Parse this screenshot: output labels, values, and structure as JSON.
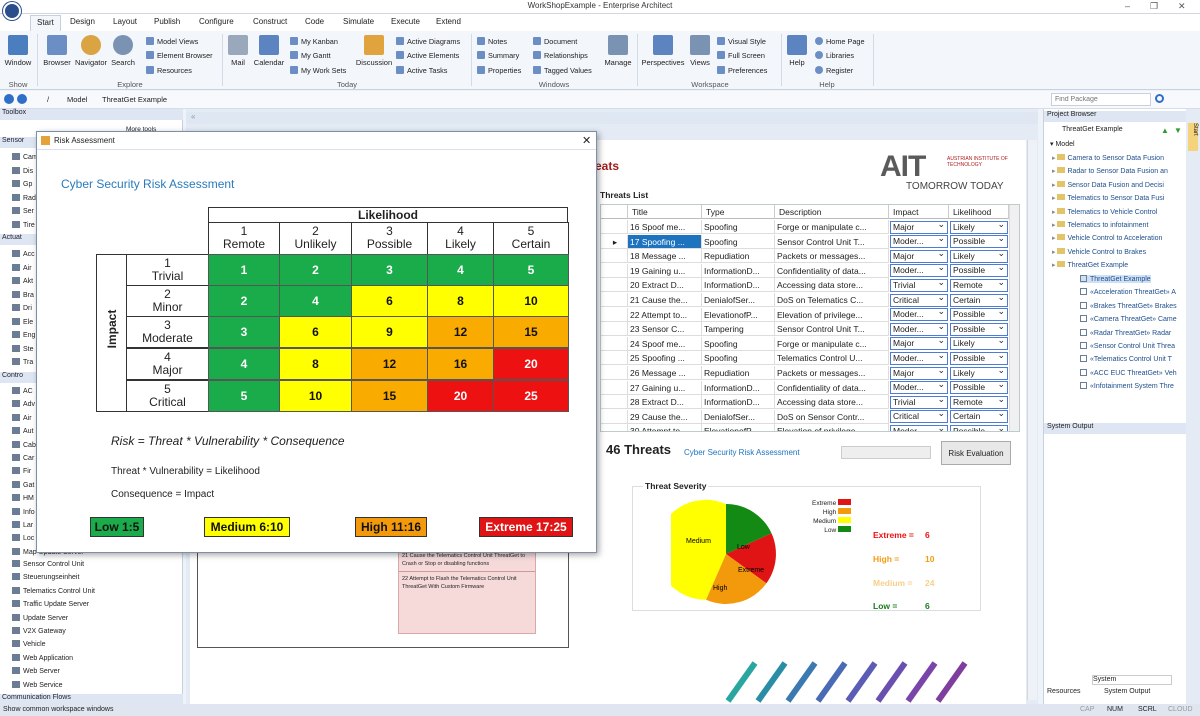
{
  "window": {
    "title": "WorkShopExample - Enterprise Architect"
  },
  "ribbon": {
    "tabs": [
      "Start",
      "Design",
      "Layout",
      "Publish",
      "Configure",
      "Construct",
      "Code",
      "Simulate",
      "Execute",
      "Extend"
    ],
    "window_label": "Window",
    "browser": "Browser",
    "navigator": "Navigator",
    "search": "Search",
    "model_views": "Model Views",
    "element_browser": "Element Browser",
    "resources": "Resources",
    "mail": "Mail",
    "calendar": "Calendar",
    "my_kanban": "My Kanban",
    "my_gantt": "My Gantt",
    "my_work_sets": "My Work Sets",
    "discussion": "Discussion",
    "active_diagrams": "Active Diagrams",
    "active_elements": "Active Elements",
    "active_tasks": "Active Tasks",
    "notes": "Notes",
    "summary": "Summary",
    "properties": "Properties",
    "document": "Document",
    "relationships": "Relationships",
    "tagged_values": "Tagged Values",
    "manage": "Manage",
    "perspectives": "Perspectives",
    "views": "Views",
    "visual_style": "Visual Style",
    "full_screen": "Full Screen",
    "preferences": "Preferences",
    "help": "Help",
    "home_page": "Home Page",
    "libraries": "Libraries",
    "register": "Register",
    "groups": {
      "show": "Show",
      "explore": "Explore",
      "today": "Today",
      "windows": "Windows",
      "workspace": "Workspace",
      "help": "Help"
    }
  },
  "address": {
    "path": [
      "/",
      "Model",
      "ThreatGet Example"
    ],
    "find_placeholder": "Find Package"
  },
  "toolbox": {
    "title": "Toolbox",
    "more_tools": "More tools",
    "sections": [
      "Sensor",
      "Actuat",
      "Contro"
    ],
    "sensor_items": [
      "Cam",
      "Dis",
      "Gp",
      "Rad",
      "Ser",
      "Tire"
    ],
    "actuator_items": [
      "Acc",
      "Air",
      "Akt",
      "Bra",
      "Dri",
      "Ele",
      "Eng",
      "Ste",
      "Tra"
    ],
    "control_items": [
      "AC",
      "Adv",
      "Air",
      "Aut",
      "Cab",
      "Car",
      "Fir",
      "Gat",
      "HM",
      "Info",
      "Lar",
      "Loc",
      "Map Update Server"
    ],
    "full_items": [
      "Sensor Control Unit",
      "Steuerungseinheit",
      "Telematics Control Unit",
      "Traffic Update Server",
      "Update Server",
      "V2X Gateway",
      "Vehicle",
      "Web Application",
      "Web Server",
      "Web Service"
    ],
    "footer_section": "Communication Flows"
  },
  "dialog": {
    "title": "Risk Assessment",
    "heading": "Cyber Security Risk Assessment",
    "likelihood_label": "Likelihood",
    "impact_label": "Impact",
    "likelihood": [
      {
        "n": "1",
        "name": "Remote"
      },
      {
        "n": "2",
        "name": "Unlikely"
      },
      {
        "n": "3",
        "name": "Possible"
      },
      {
        "n": "4",
        "name": "Likely"
      },
      {
        "n": "5",
        "name": "Certain"
      }
    ],
    "impact": [
      {
        "n": "1",
        "name": "Trivial"
      },
      {
        "n": "2",
        "name": "Minor"
      },
      {
        "n": "3",
        "name": "Moderate"
      },
      {
        "n": "4",
        "name": "Major"
      },
      {
        "n": "5",
        "name": "Critical"
      }
    ],
    "matrix": [
      [
        1,
        2,
        3,
        4,
        5
      ],
      [
        2,
        4,
        6,
        8,
        10
      ],
      [
        3,
        6,
        9,
        12,
        15
      ],
      [
        4,
        8,
        12,
        16,
        20
      ],
      [
        5,
        10,
        15,
        20,
        25
      ]
    ],
    "colors": {
      "low": "#1aab4b",
      "medium": "#ffff00",
      "high": "#f9ab00",
      "extreme": "#ee1111"
    },
    "formula": "Risk = Threat * Vulnerability * Consequence",
    "line1": "Threat * Vulnerability = Likelihood",
    "line2": "Consequence = Impact",
    "legend": [
      {
        "label": "Low 1:5",
        "level": "low"
      },
      {
        "label": "Medium 6:10",
        "level": "medium"
      },
      {
        "label": "High 11:16",
        "level": "high"
      },
      {
        "label": "Extreme 17:25",
        "level": "extreme"
      }
    ]
  },
  "canvas": {
    "title_fragment": "eats",
    "ait_logo": "AIT",
    "ait_subtitle": "AUSTRIAN INSTITUTE OF TECHNOLOGY",
    "ait_tagline": "TOMORROW TODAY",
    "threats_list_label": "Threats List",
    "columns": [
      "Title",
      "Type",
      "Description",
      "Impact",
      "Likelihood"
    ],
    "rows": [
      {
        "title": "16 Spoof me...",
        "type": "Spoofing",
        "desc": "Forge or manipulate c...",
        "impact": "Major",
        "likelihood": "Likely"
      },
      {
        "title": "17 Spoofing ...",
        "type": "Spoofing",
        "desc": "Sensor Control Unit T...",
        "impact": "Moder...",
        "likelihood": "Possible"
      },
      {
        "title": "18 Message ...",
        "type": "Repudiation",
        "desc": "Packets or messages...",
        "impact": "Major",
        "likelihood": "Likely"
      },
      {
        "title": "19 Gaining u...",
        "type": "InformationD...",
        "desc": "Confidentiality of data...",
        "impact": "Moder...",
        "likelihood": "Possible"
      },
      {
        "title": "20 Extract D...",
        "type": "InformationD...",
        "desc": "Accessing data store...",
        "impact": "Trivial",
        "likelihood": "Remote"
      },
      {
        "title": "21 Cause the...",
        "type": "DenialofSer...",
        "desc": "DoS on Telematics C...",
        "impact": "Critical",
        "likelihood": "Certain"
      },
      {
        "title": "22 Attempt to...",
        "type": "ElevationofP...",
        "desc": "Elevation of privilege...",
        "impact": "Moder...",
        "likelihood": "Possible"
      },
      {
        "title": "23 Sensor C...",
        "type": "Tampering",
        "desc": "Sensor Control Unit T...",
        "impact": "Moder...",
        "likelihood": "Possible"
      },
      {
        "title": "24 Spoof me...",
        "type": "Spoofing",
        "desc": "Forge or manipulate c...",
        "impact": "Major",
        "likelihood": "Likely"
      },
      {
        "title": "25 Spoofing ...",
        "type": "Spoofing",
        "desc": "Telematics Control U...",
        "impact": "Moder...",
        "likelihood": "Possible"
      },
      {
        "title": "26 Message ...",
        "type": "Repudiation",
        "desc": "Packets or messages...",
        "impact": "Major",
        "likelihood": "Likely"
      },
      {
        "title": "27 Gaining u...",
        "type": "InformationD...",
        "desc": "Confidentiality of data...",
        "impact": "Moder...",
        "likelihood": "Possible"
      },
      {
        "title": "28 Extract D...",
        "type": "InformationD...",
        "desc": "Accessing data store...",
        "impact": "Trivial",
        "likelihood": "Remote"
      },
      {
        "title": "29 Cause the...",
        "type": "DenialofSer...",
        "desc": "DoS on Sensor Contr...",
        "impact": "Critical",
        "likelihood": "Certain"
      },
      {
        "title": "30 Attempt to...",
        "type": "ElevationofP...",
        "desc": "Elevation of privilege...",
        "impact": "Moder...",
        "likelihood": "Possible"
      }
    ],
    "threat_count": "46 Threats",
    "risk_link": "Cyber Security Risk Assessment",
    "risk_eval_button": "Risk Evaluation",
    "severity_title": "Threat Severity",
    "severity_legend": [
      "Extreme",
      "High",
      "Medium",
      "Low"
    ],
    "severity_counts": [
      {
        "label": "Extreme =",
        "value": "6",
        "color": "#e11"
      },
      {
        "label": "High =",
        "value": "10",
        "color": "#f39c12"
      },
      {
        "label": "Medium =",
        "value": "24",
        "color": "#f5d08a"
      },
      {
        "label": "Low =",
        "value": "6",
        "color": "#1a7d1a"
      }
    ],
    "pie": {
      "Medium": 24,
      "High": 10,
      "Extreme": 6,
      "Low": 6
    },
    "pie_labels": [
      "Medium",
      "Low",
      "Extreme",
      "High"
    ],
    "note1": "21 Cause the Telematics Control Unit ThreatGet to Crash or Stop or disabling functions",
    "note2": "22 Attempt to Flash the Telematics Control Unit ThreatGet With Custom Firmware"
  },
  "project_browser": {
    "title": "Project Browser",
    "root": "ThreatGet Example",
    "model": "Model",
    "packages": [
      "Camera to Sensor Data Fusion",
      "Radar to Sensor Data Fusion an",
      "Sensor Data Fusion and Decisi",
      "Telematics to Sensor Data Fusi",
      "Telematics to Vehicle Control",
      "Telematics to infotainment",
      "Vehicle Control to Acceleration",
      "Vehicle Control to Brakes",
      "ThreatGet Example"
    ],
    "diagrams": [
      "ThreatGet Example",
      "«Acceleration ThreatGet» A",
      "«Brakes ThreatGet» Brakes",
      "«Camera ThreatGet» Came",
      "«Radar ThreatGet» Radar",
      "«Sensor Control Unit Threa",
      "«Telematics Control Unit T",
      "«ACC EUC ThreatGet» Veh",
      "«Infotainment System Thre"
    ],
    "system_output": "System Output",
    "system_tab": "System",
    "tabs": [
      "Resources",
      "System Output"
    ],
    "start_tab": "Start"
  },
  "statusbar": {
    "text": "Show common workspace windows",
    "cap": "CAP",
    "num": "NUM",
    "scrl": "SCRL",
    "cloud": "CLOUD"
  }
}
